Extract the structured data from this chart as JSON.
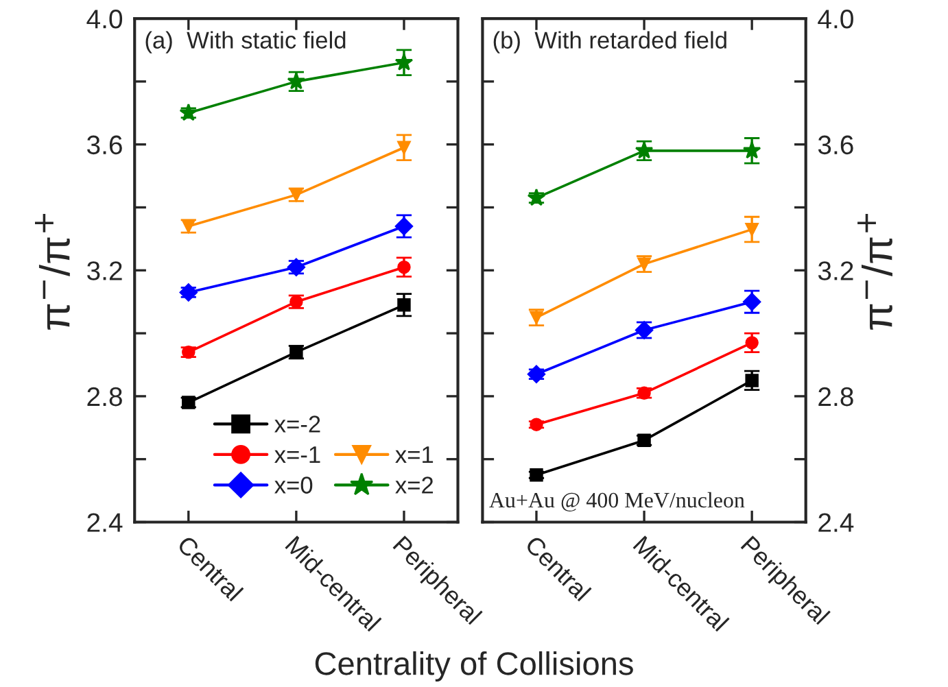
{
  "chart_data": [
    {
      "type": "line",
      "xlabel": "Centrality of Collisions",
      "ylabel": "π$^{−}$/π$^{+}$",
      "categories": [
        "Central",
        "Mid-central",
        "Peripheral"
      ],
      "ylim": [
        2.4,
        4.0
      ],
      "yticks": [
        {
          "value": 2.4,
          "label": "2.4"
        },
        {
          "value": 2.6,
          "label": null
        },
        {
          "value": 2.8,
          "label": "2.8"
        },
        {
          "value": 3.0,
          "label": null
        },
        {
          "value": 3.2,
          "label": "3.2"
        },
        {
          "value": 3.4,
          "label": null
        },
        {
          "value": 3.6,
          "label": "3.6"
        },
        {
          "value": 3.8,
          "label": null
        },
        {
          "value": 4.0,
          "label": "4.0"
        }
      ],
      "legend": "bottom right",
      "grid": false,
      "annotations": [
        "(a)  With static field"
      ],
      "series": [
        {
          "name": "x=-2",
          "color": "#000000",
          "marker": "square",
          "values": [
            2.78,
            2.94,
            3.09
          ],
          "errors": [
            0.015,
            0.02,
            0.035
          ]
        },
        {
          "name": "x=-1",
          "color": "#ff0000",
          "marker": "circle",
          "values": [
            2.94,
            3.1,
            3.21
          ],
          "errors": [
            0.015,
            0.02,
            0.03
          ]
        },
        {
          "name": "x=0",
          "color": "#0000ff",
          "marker": "diamond",
          "values": [
            3.13,
            3.21,
            3.34
          ],
          "errors": [
            0.015,
            0.02,
            0.035
          ]
        },
        {
          "name": "x=1",
          "color": "#ff8c00",
          "marker": "triangle",
          "values": [
            3.34,
            3.44,
            3.59
          ],
          "errors": [
            0.02,
            0.02,
            0.04
          ]
        },
        {
          "name": "x=2",
          "color": "#008000",
          "marker": "star",
          "values": [
            3.7,
            3.8,
            3.86
          ],
          "errors": [
            0.015,
            0.03,
            0.04
          ]
        }
      ]
    },
    {
      "type": "line",
      "y2label": "π$^{−}$/π$^{+}$",
      "categories": [
        "Central",
        "Mid-central",
        "Peripheral"
      ],
      "y2lim": [
        2.4,
        4.0
      ],
      "y2ticks": [
        {
          "value": 2.4,
          "label": "2.4"
        },
        {
          "value": 2.6,
          "label": null
        },
        {
          "value": 2.8,
          "label": "2.8"
        },
        {
          "value": 3.0,
          "label": null
        },
        {
          "value": 3.2,
          "label": "3.2"
        },
        {
          "value": 3.4,
          "label": null
        },
        {
          "value": 3.6,
          "label": "3.6"
        },
        {
          "value": 3.8,
          "label": null
        },
        {
          "value": 4.0,
          "label": "4.0"
        }
      ],
      "grid": false,
      "annotations": [
        "(b)  With retarded field",
        "Au+Au @ 400 MeV/nucleon"
      ],
      "series": [
        {
          "color": "#000000",
          "marker": "square",
          "axis": "y2",
          "values": [
            2.55,
            2.66,
            2.85
          ],
          "errors": [
            0.01,
            0.015,
            0.03
          ]
        },
        {
          "color": "#ff0000",
          "marker": "circle",
          "axis": "y2",
          "values": [
            2.71,
            2.81,
            2.97
          ],
          "errors": [
            0.01,
            0.015,
            0.03
          ]
        },
        {
          "color": "#0000ff",
          "marker": "diamond",
          "axis": "y2",
          "values": [
            2.87,
            3.01,
            3.1
          ],
          "errors": [
            0.015,
            0.025,
            0.035
          ]
        },
        {
          "color": "#ff8c00",
          "marker": "triangle",
          "axis": "y2",
          "values": [
            3.05,
            3.22,
            3.33
          ],
          "errors": [
            0.025,
            0.025,
            0.04
          ]
        },
        {
          "color": "#008000",
          "marker": "star",
          "axis": "y2",
          "values": [
            3.43,
            3.58,
            3.58
          ],
          "errors": [
            0.015,
            0.03,
            0.04
          ]
        }
      ]
    }
  ]
}
